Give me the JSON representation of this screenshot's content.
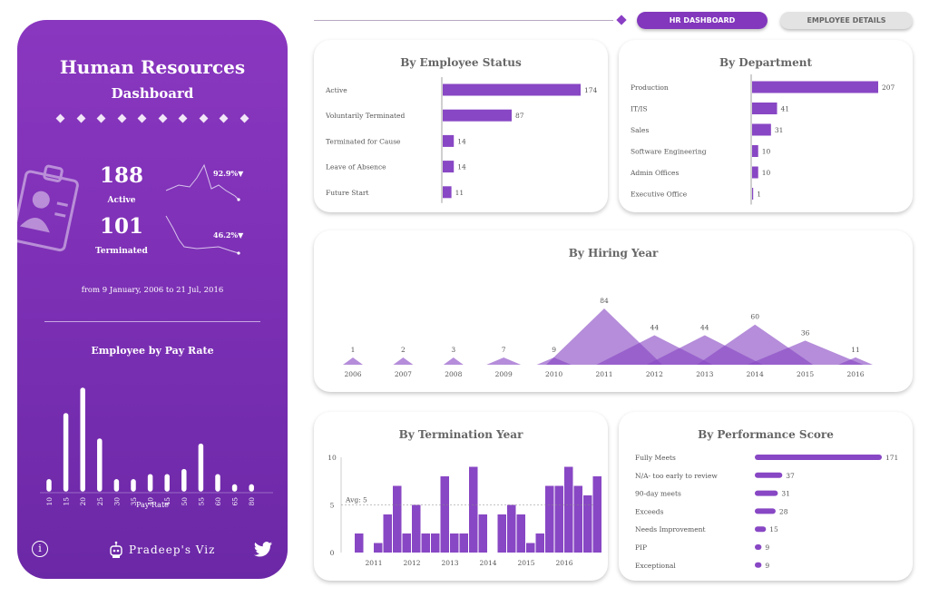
{
  "sidebar": {
    "title": "Human Resources",
    "subtitle": "Dashboard",
    "active_value": "188",
    "active_label": "Active",
    "active_change": "92.9%▼",
    "terminated_value": "101",
    "terminated_label": "Terminated",
    "terminated_change": "46.2%▼",
    "date_range": "from 9 January, 2006 to 21 Jul, 2016",
    "pay_title": "Employee by Pay Rate",
    "pay_xlabel": "Pay Rate",
    "info_icon": "info-icon",
    "logo_text": "Pradeep's Viz",
    "twitter_icon": "twitter-icon"
  },
  "nav": {
    "hr_label": "HR DASHBOARD",
    "emp_label": "EMPLOYEE DETAILS"
  },
  "colors": {
    "accent": "#8a3fc4",
    "panel": "#7a2fb3",
    "bar": "#8847c4"
  },
  "chart_data": [
    {
      "id": "pay-rate",
      "type": "bar",
      "title": "Employee by Pay Rate",
      "xlabel": "Pay Rate",
      "categories": [
        "10",
        "15",
        "20",
        "25",
        "30",
        "35",
        "40",
        "45",
        "50",
        "55",
        "60",
        "65",
        "80"
      ],
      "values": [
        2,
        15,
        20,
        10,
        2,
        2,
        3,
        3,
        4,
        9,
        3,
        1,
        1
      ]
    },
    {
      "id": "status",
      "type": "bar",
      "title": "By Employee Status",
      "categories": [
        "Active",
        "Voluntarily Terminated",
        "Terminated for Cause",
        "Leave of Absence",
        "Future Start"
      ],
      "values": [
        174,
        87,
        14,
        14,
        11
      ]
    },
    {
      "id": "department",
      "type": "bar",
      "title": "By Department",
      "categories": [
        "Production",
        "IT/IS",
        "Sales",
        "Software Engineering",
        "Admin Offices",
        "Executive Office"
      ],
      "values": [
        207,
        41,
        31,
        10,
        10,
        1
      ]
    },
    {
      "id": "hiring",
      "type": "area",
      "title": "By Hiring Year",
      "categories": [
        "2006",
        "2007",
        "2008",
        "2009",
        "2010",
        "2011",
        "2012",
        "2013",
        "2014",
        "2015",
        "2016"
      ],
      "values": [
        1,
        2,
        3,
        7,
        9,
        84,
        44,
        44,
        60,
        36,
        11
      ]
    },
    {
      "id": "termination",
      "type": "bar",
      "title": "By Termination Year",
      "ylim": [
        0,
        10
      ],
      "yticks": [
        "0",
        "5",
        "10"
      ],
      "avg_label": "Avg: 5",
      "avg": 5,
      "xticks": [
        "2011",
        "2012",
        "2013",
        "2014",
        "2015",
        "2016"
      ],
      "values": [
        2,
        0,
        1,
        4,
        7,
        2,
        5,
        2,
        2,
        8,
        2,
        2,
        9,
        4,
        0,
        4,
        5,
        4,
        1,
        2,
        7,
        7,
        9,
        7,
        6,
        8
      ]
    },
    {
      "id": "performance",
      "type": "bar",
      "title": "By Performance Score",
      "categories": [
        "Fully Meets",
        "N/A- too early to review",
        "90-day meets",
        "Exceeds",
        "Needs Improvement",
        "PIP",
        "Exceptional"
      ],
      "values": [
        171,
        37,
        31,
        28,
        15,
        9,
        9
      ]
    }
  ]
}
